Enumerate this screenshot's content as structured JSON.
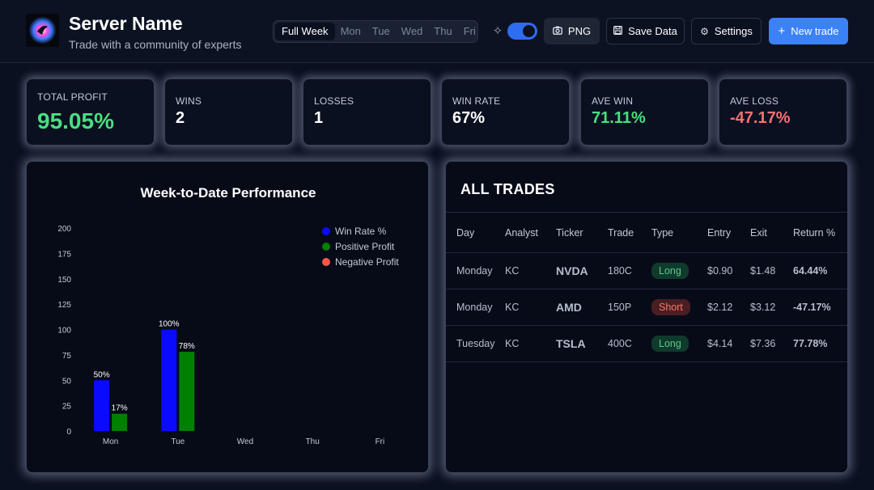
{
  "header": {
    "server_name": "Server Name",
    "subtitle": "Trade with a community of experts",
    "tabs": [
      {
        "label": "Full Week",
        "active": true
      },
      {
        "label": "Mon",
        "active": false
      },
      {
        "label": "Tue",
        "active": false
      },
      {
        "label": "Wed",
        "active": false
      },
      {
        "label": "Thu",
        "active": false
      },
      {
        "label": "Fri",
        "active": false
      }
    ],
    "theme_toggle_on": true,
    "png_label": "PNG",
    "save_label": "Save Data",
    "settings_label": "Settings",
    "new_trade_label": "New trade",
    "icons": {
      "sparkle": "sparkle-icon",
      "png": "camera-icon",
      "save": "floppy-disk-icon",
      "settings": "gear-icon",
      "new_trade": "plus-icon"
    }
  },
  "stats": [
    {
      "label": "TOTAL PROFIT",
      "value": "95.05%",
      "color": "#4ade80"
    },
    {
      "label": "WINS",
      "value": "2",
      "color": "#ffffff"
    },
    {
      "label": "LOSSES",
      "value": "1",
      "color": "#ffffff"
    },
    {
      "label": "WIN RATE",
      "value": "67%",
      "color": "#ffffff"
    },
    {
      "label": "AVE WIN",
      "value": "71.11%",
      "color": "#4ade80"
    },
    {
      "label": "AVE LOSS",
      "value": "-47.17%",
      "color": "#f87171"
    }
  ],
  "colors": {
    "win_rate": "#0a0aff",
    "positive_profit": "#008000",
    "negative_profit": "#f8554b",
    "accent": "#3b82f6"
  },
  "chart_data": {
    "type": "bar",
    "title": "Week-to-Date Performance",
    "categories": [
      "Mon",
      "Tue",
      "Wed",
      "Thu",
      "Fri"
    ],
    "ylim": [
      0,
      200
    ],
    "yticks": [
      0,
      25,
      50,
      75,
      100,
      125,
      150,
      175,
      200
    ],
    "series": [
      {
        "name": "Win Rate %",
        "values": [
          50,
          100,
          null,
          null,
          null
        ],
        "labels": [
          "50%",
          "100%",
          "",
          "",
          ""
        ]
      },
      {
        "name": "Positive Profit",
        "values": [
          17,
          78,
          null,
          null,
          null
        ],
        "labels": [
          "17%",
          "78%",
          "",
          "",
          ""
        ]
      },
      {
        "name": "Negative Profit",
        "values": [
          null,
          null,
          null,
          null,
          null
        ],
        "labels": [
          "",
          "",
          "",
          "",
          ""
        ]
      }
    ],
    "legend_position": "top-right",
    "grid": false
  },
  "trades": {
    "title": "ALL TRADES",
    "columns": [
      "Day",
      "Analyst",
      "Ticker",
      "Trade",
      "Type",
      "Entry",
      "Exit",
      "Return %"
    ],
    "rows": [
      {
        "day": "Monday",
        "analyst": "KC",
        "ticker": "NVDA",
        "trade": "180C",
        "type": "Long",
        "entry": "$0.90",
        "exit": "$1.48",
        "return": "64.44%"
      },
      {
        "day": "Monday",
        "analyst": "KC",
        "ticker": "AMD",
        "trade": "150P",
        "type": "Short",
        "entry": "$2.12",
        "exit": "$3.12",
        "return": "-47.17%"
      },
      {
        "day": "Tuesday",
        "analyst": "KC",
        "ticker": "TSLA",
        "trade": "400C",
        "type": "Long",
        "entry": "$4.14",
        "exit": "$7.36",
        "return": "77.78%"
      }
    ]
  }
}
